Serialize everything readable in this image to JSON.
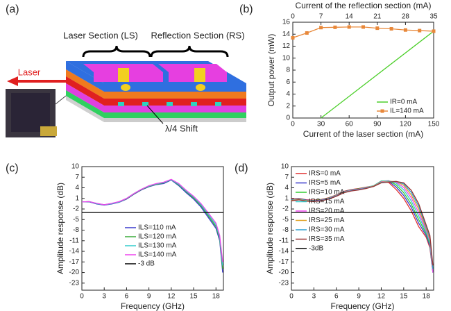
{
  "panel_labels": [
    "(a)",
    "(b)",
    "(c)",
    "(d)"
  ],
  "diagram": {
    "labels": [
      "Laser Section (LS)",
      "Reflection Section (RS)",
      "Laser",
      "λ/4 Shift"
    ]
  },
  "chart_data": [
    {
      "type": "line",
      "xlabel": "Current of the laser section (mA)",
      "x2label": "Current of the reflection section (mA)",
      "ylabel": "Output power (mW)",
      "xlim": [
        0,
        150
      ],
      "xticks": [
        0,
        30,
        60,
        90,
        120,
        150
      ],
      "x2lim": [
        0,
        35
      ],
      "x2ticks": [
        0,
        7,
        14,
        21,
        28,
        35
      ],
      "ylim": [
        0,
        16
      ],
      "yticks": [
        0,
        2,
        4,
        6,
        8,
        10,
        12,
        14,
        16
      ],
      "legend": "lower right",
      "series": [
        {
          "name": "IR=0 mA",
          "color": "#4ccf2a",
          "x": [
            30,
            150
          ],
          "values": [
            0,
            14.5
          ]
        },
        {
          "name": "IL=140 mA",
          "color": "#e8883a",
          "axis": "x2",
          "marker": "square",
          "x": [
            0,
            3.5,
            7,
            10.5,
            14,
            17.5,
            21,
            24.5,
            28,
            31.5,
            35
          ],
          "values": [
            13.4,
            14.2,
            15.1,
            15.15,
            15.2,
            15.2,
            15.0,
            14.9,
            14.7,
            14.6,
            14.5
          ]
        }
      ]
    },
    {
      "type": "line",
      "xlabel": "Frequency (GHz)",
      "ylabel": "Amplitude response (dB)",
      "xlim": [
        0,
        19
      ],
      "xticks": [
        0,
        3,
        6,
        9,
        12,
        15,
        18
      ],
      "ylim": [
        -25,
        10
      ],
      "yticks": [
        10,
        7,
        4,
        1,
        -2,
        -5,
        -8,
        -11,
        -14,
        -17,
        -20,
        -23
      ],
      "legend": "lower center",
      "x": [
        0,
        1,
        2,
        3,
        4,
        5,
        6,
        7,
        8,
        9,
        10,
        11,
        12,
        13,
        14,
        15,
        16,
        17,
        18,
        18.5,
        18.9
      ],
      "series": [
        {
          "name": "ILS=110 mA",
          "color": "#3a3acc",
          "values": [
            0,
            0,
            -0.6,
            -0.9,
            -0.6,
            -0.1,
            0.8,
            2.2,
            3.4,
            4.3,
            4.9,
            5.2,
            6.2,
            4.6,
            2.6,
            0.8,
            -1.5,
            -4.5,
            -7.5,
            -11,
            -20
          ]
        },
        {
          "name": "ILS=120 mA",
          "color": "#3aaa3a",
          "values": [
            0,
            0.1,
            -0.5,
            -0.8,
            -0.5,
            0,
            0.9,
            2.3,
            3.5,
            4.4,
            5,
            5.4,
            6.3,
            4.8,
            2.9,
            1.1,
            -1.1,
            -4,
            -7,
            -10.5,
            -19
          ]
        },
        {
          "name": "ILS=130 mA",
          "color": "#33cccc",
          "values": [
            0,
            0.1,
            -0.5,
            -0.8,
            -0.5,
            0,
            1,
            2.4,
            3.6,
            4.5,
            5.1,
            5.5,
            6.3,
            5,
            3.1,
            1.4,
            -0.8,
            -3.6,
            -6.5,
            -10,
            -18
          ]
        },
        {
          "name": "ILS=140 mA",
          "color": "#ee44ee",
          "values": [
            0,
            0.1,
            -0.4,
            -0.8,
            -0.4,
            0.1,
            1,
            2.4,
            3.6,
            4.6,
            5.2,
            5.6,
            6.4,
            5.2,
            3.3,
            1.6,
            -0.5,
            -3.2,
            -6,
            -9.5,
            -17
          ]
        },
        {
          "name": "-3 dB",
          "color": "#000000",
          "x": [
            0,
            19
          ],
          "values": [
            -3,
            -3
          ]
        }
      ]
    },
    {
      "type": "line",
      "xlabel": "Frequency (GHz)",
      "ylabel": "Amplitude response (dB)",
      "xlim": [
        0,
        19
      ],
      "xticks": [
        0,
        3,
        6,
        9,
        12,
        15,
        18
      ],
      "ylim": [
        -25,
        10
      ],
      "yticks": [
        10,
        7,
        4,
        1,
        -2,
        -5,
        -8,
        -11,
        -14,
        -17,
        -20,
        -23
      ],
      "legend": "upper left",
      "x": [
        0,
        1,
        2,
        3,
        4,
        5,
        6,
        7,
        8,
        9,
        10,
        11,
        12,
        13,
        14,
        15,
        16,
        17,
        18,
        18.5,
        18.9
      ],
      "series": [
        {
          "name": "IRS=0 mA",
          "color": "#e03030",
          "values": [
            0.8,
            1,
            0.6,
            0.5,
            0.7,
            1.2,
            2,
            3,
            3.5,
            3.8,
            4.2,
            4.5,
            5.8,
            5.5,
            3.5,
            1,
            -2.5,
            -7,
            -10,
            -13,
            -20
          ]
        },
        {
          "name": "IRS=5 mA",
          "color": "#3a3acc",
          "values": [
            0.6,
            0.9,
            0.5,
            0.4,
            0.6,
            1.1,
            1.9,
            2.9,
            3.4,
            3.7,
            4.1,
            4.6,
            5.9,
            5.8,
            4.2,
            1.8,
            -1.5,
            -6,
            -9.5,
            -12.5,
            -20
          ]
        },
        {
          "name": "IRS=10 mA",
          "color": "#33cc33",
          "values": [
            0.5,
            0.8,
            0.4,
            0.4,
            0.6,
            1.1,
            1.9,
            2.8,
            3.4,
            3.7,
            4.1,
            4.6,
            5.9,
            6,
            4.8,
            2.6,
            -0.6,
            -5,
            -9,
            -12,
            -20
          ]
        },
        {
          "name": "IRS=15 mA",
          "color": "#33cccc",
          "values": [
            0.5,
            0.8,
            0.4,
            0.3,
            0.5,
            1,
            1.8,
            2.8,
            3.3,
            3.6,
            4,
            4.6,
            5.8,
            6,
            5.3,
            3.4,
            0.3,
            -4,
            -8.5,
            -11.5,
            -20
          ]
        },
        {
          "name": "IRS=20 mA",
          "color": "#ee44ee",
          "values": [
            0.4,
            0.7,
            0.3,
            0.3,
            0.5,
            1,
            1.8,
            2.7,
            3.3,
            3.6,
            4,
            4.5,
            5.7,
            5.9,
            5.6,
            4.1,
            1.2,
            -3,
            -8,
            -11,
            -20
          ]
        },
        {
          "name": "IRS=25 mA",
          "color": "#e0a020",
          "values": [
            0.4,
            0.7,
            0.3,
            0.2,
            0.4,
            0.9,
            1.7,
            2.7,
            3.2,
            3.5,
            3.9,
            4.5,
            5.6,
            5.8,
            5.8,
            4.7,
            2,
            -2,
            -7.5,
            -10.5,
            -19
          ]
        },
        {
          "name": "IRS=30 mA",
          "color": "#2a9fd0",
          "values": [
            0.3,
            0.6,
            0.2,
            0.2,
            0.4,
            0.9,
            1.7,
            2.6,
            3.2,
            3.5,
            3.9,
            4.4,
            5.5,
            5.7,
            5.8,
            5.1,
            2.7,
            -1.2,
            -7,
            -10,
            -19
          ]
        },
        {
          "name": "IRS=35 mA",
          "color": "#993333",
          "values": [
            0.3,
            0.6,
            0.2,
            0.1,
            0.3,
            0.8,
            1.6,
            2.6,
            3.1,
            3.4,
            3.8,
            4.4,
            5.4,
            5.6,
            5.8,
            5.4,
            3.3,
            -0.5,
            -6.5,
            -9.5,
            -18
          ]
        },
        {
          "name": "-3dB",
          "color": "#000000",
          "x": [
            0,
            19
          ],
          "values": [
            -3,
            -3
          ]
        }
      ]
    }
  ]
}
